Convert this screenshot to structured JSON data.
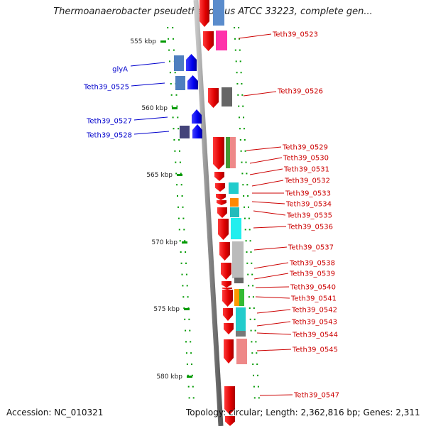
{
  "title": "Thermoanaerobacter pseudethanolicus ATCC 33223, complete gen...",
  "accession": "Accession: NC_010321",
  "topology": "Topology: circular; Length: 2,362,816 bp; Genes: 2,311",
  "ruler_labels": [
    "555 kbp",
    "560 kbp",
    "565 kbp",
    "570 kbp",
    "575 kbp",
    "580 kbp"
  ],
  "colors": {
    "forward_label": "#0000cc",
    "reverse_label": "#cc0000",
    "backbone": "#888888",
    "tick": "#009900",
    "forward_gene": "#0000ff",
    "reverse_gene": "#ff0000"
  },
  "genes": [
    {
      "label": "Teth39_0523",
      "strand": "reverse"
    },
    {
      "label": "glyA",
      "strand": "forward"
    },
    {
      "label": "Teth39_0525",
      "strand": "forward"
    },
    {
      "label": "Teth39_0526",
      "strand": "reverse"
    },
    {
      "label": "Teth39_0527",
      "strand": "forward"
    },
    {
      "label": "Teth39_0528",
      "strand": "forward"
    },
    {
      "label": "Teth39_0529",
      "strand": "reverse"
    },
    {
      "label": "Teth39_0530",
      "strand": "reverse"
    },
    {
      "label": "Teth39_0531",
      "strand": "reverse"
    },
    {
      "label": "Teth39_0532",
      "strand": "reverse"
    },
    {
      "label": "Teth39_0533",
      "strand": "reverse"
    },
    {
      "label": "Teth39_0534",
      "strand": "reverse"
    },
    {
      "label": "Teth39_0535",
      "strand": "reverse"
    },
    {
      "label": "Teth39_0536",
      "strand": "reverse"
    },
    {
      "label": "Teth39_0537",
      "strand": "reverse"
    },
    {
      "label": "Teth39_0538",
      "strand": "reverse"
    },
    {
      "label": "Teth39_0539",
      "strand": "reverse"
    },
    {
      "label": "Teth39_0540",
      "strand": "reverse"
    },
    {
      "label": "Teth39_0541",
      "strand": "reverse"
    },
    {
      "label": "Teth39_0542",
      "strand": "reverse"
    },
    {
      "label": "Teth39_0543",
      "strand": "reverse"
    },
    {
      "label": "Teth39_0544",
      "strand": "reverse"
    },
    {
      "label": "Teth39_0545",
      "strand": "reverse"
    },
    {
      "label": "Teth39_0547",
      "strand": "reverse"
    }
  ]
}
